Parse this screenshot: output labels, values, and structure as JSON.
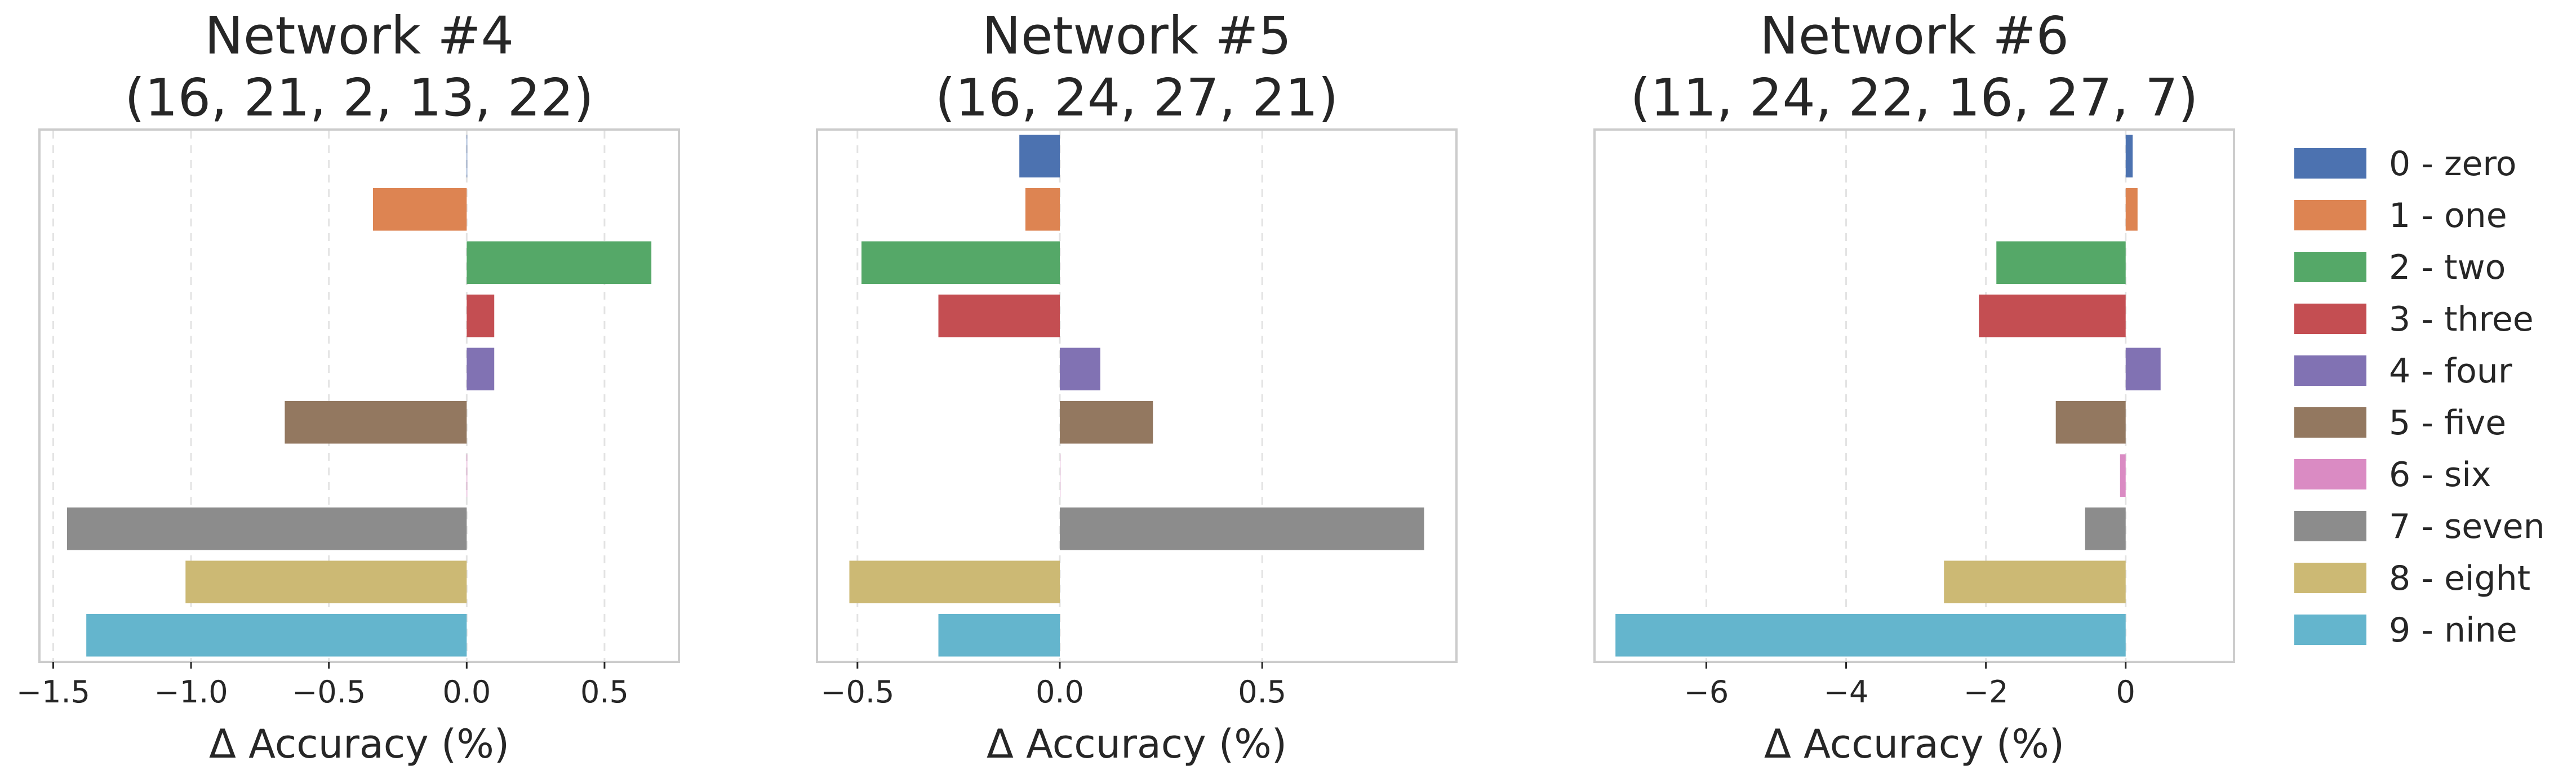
{
  "chart_data": {
    "type": "bar",
    "orientation": "horizontal",
    "xlabel": "Δ Accuracy (%)",
    "legend_position": "right",
    "grid": "vertical-dashed",
    "categories": [
      "0 - zero",
      "1 - one",
      "2 - two",
      "3 - three",
      "4 - four",
      "5 - five",
      "6 - six",
      "7 - seven",
      "8 - eight",
      "9 - nine"
    ],
    "colors": [
      "#4c72b0",
      "#dd8452",
      "#55a868",
      "#c44e52",
      "#8172b3",
      "#937860",
      "#da8bc3",
      "#8c8c8c",
      "#ccb974",
      "#64b5cd"
    ],
    "panels": [
      {
        "title_line1": "Network #4",
        "title_line2": "(16, 21, 2, 13, 22)",
        "xlim": [
          -1.55,
          0.77
        ],
        "xticks": [
          -1.5,
          -1.0,
          -0.5,
          0.0,
          0.5
        ],
        "xtick_labels": [
          "−1.5",
          "−1.0",
          "−0.5",
          "0.0",
          "0.5"
        ],
        "values": [
          0.0,
          -0.34,
          0.67,
          0.1,
          0.1,
          -0.66,
          0.0,
          -1.45,
          -1.02,
          -1.38
        ]
      },
      {
        "title_line1": "Network #5",
        "title_line2": "(16, 24, 27, 21)",
        "xlim": [
          -0.6,
          0.98
        ],
        "xticks": [
          -0.5,
          0.0,
          0.5
        ],
        "xtick_labels": [
          "−0.5",
          "0.0",
          "0.5"
        ],
        "values": [
          -0.1,
          -0.085,
          -0.49,
          -0.3,
          0.1,
          0.23,
          0.0,
          0.9,
          -0.52,
          -0.3
        ]
      },
      {
        "title_line1": "Network #6",
        "title_line2": "(11, 24, 22, 16, 27, 7)",
        "xlim": [
          -7.6,
          1.55
        ],
        "xticks": [
          -6,
          -4,
          -2,
          0
        ],
        "xtick_labels": [
          "−6",
          "−4",
          "−2",
          "0"
        ],
        "values": [
          0.1,
          0.17,
          -1.85,
          -2.1,
          0.5,
          -1.0,
          -0.08,
          -0.58,
          -2.6,
          -7.3
        ]
      }
    ]
  }
}
